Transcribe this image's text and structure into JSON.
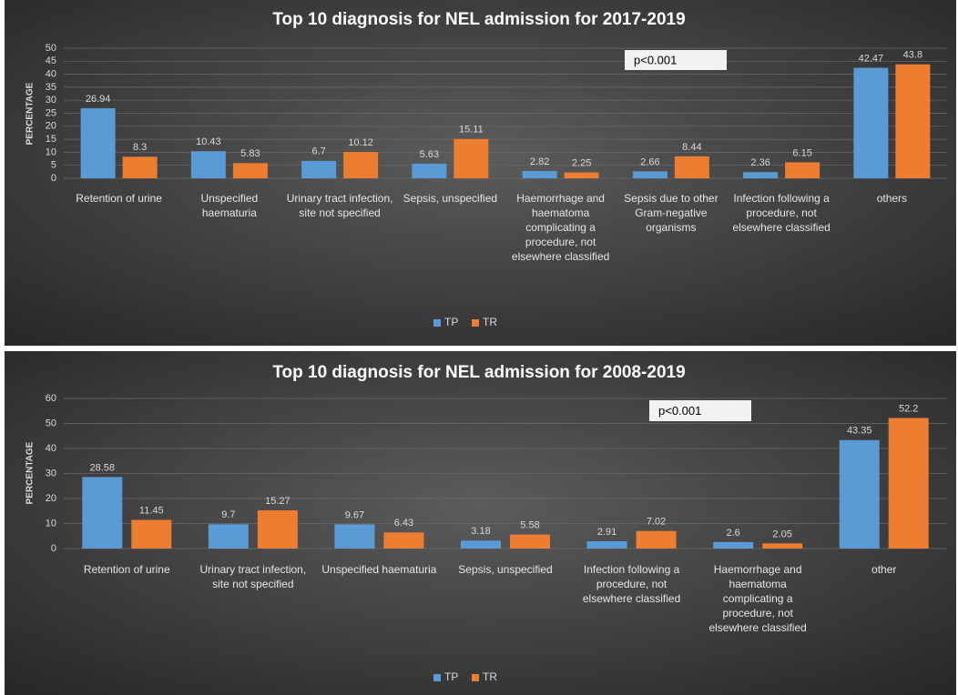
{
  "chart_data": [
    {
      "type": "bar",
      "title": "Top 10 diagnosis for NEL admission for 2017-2019",
      "y_label": "PERCENTAGE",
      "annotation": "p<0.001",
      "categories": [
        "Retention of urine",
        "Unspecified haematuria",
        "Urinary tract infection, site not specified",
        "Sepsis, unspecified",
        "Haemorrhage and haematoma complicating a procedure, not elsewhere classified",
        "Sepsis due to other Gram-negative organisms",
        "Infection following a procedure, not elsewhere classified",
        "others"
      ],
      "series": [
        {
          "name": "TP",
          "color": "#5b9bd5",
          "values": [
            26.94,
            10.43,
            6.7,
            5.63,
            2.82,
            2.66,
            2.36,
            42.47
          ]
        },
        {
          "name": "TR",
          "color": "#ed7d31",
          "values": [
            8.3,
            5.83,
            10.12,
            15.11,
            2.25,
            8.44,
            6.15,
            43.8
          ]
        }
      ],
      "ylim": [
        0,
        50
      ],
      "yticks": [
        0,
        5,
        10,
        15,
        20,
        25,
        30,
        35,
        40,
        45,
        50
      ],
      "grid": true,
      "legend": "bottom"
    },
    {
      "type": "bar",
      "title": "Top 10 diagnosis for NEL admission for 2008-2019",
      "y_label": "PERCENTAGE",
      "annotation": "p<0.001",
      "categories": [
        "Retention of urine",
        "Urinary tract infection, site not specified",
        "Unspecified haematuria",
        "Sepsis, unspecified",
        "Infection following a procedure, not elsewhere classified",
        "Haemorrhage and haematoma complicating a procedure, not elsewhere classified",
        "other"
      ],
      "series": [
        {
          "name": "TP",
          "color": "#5b9bd5",
          "values": [
            28.58,
            9.7,
            9.67,
            3.18,
            2.91,
            2.6,
            43.35
          ]
        },
        {
          "name": "TR",
          "color": "#ed7d31",
          "values": [
            11.45,
            15.27,
            6.43,
            5.58,
            7.02,
            2.05,
            52.2
          ]
        }
      ],
      "ylim": [
        0,
        60
      ],
      "yticks": [
        0,
        10,
        20,
        30,
        40,
        50,
        60
      ],
      "grid": true,
      "legend": "bottom"
    }
  ]
}
